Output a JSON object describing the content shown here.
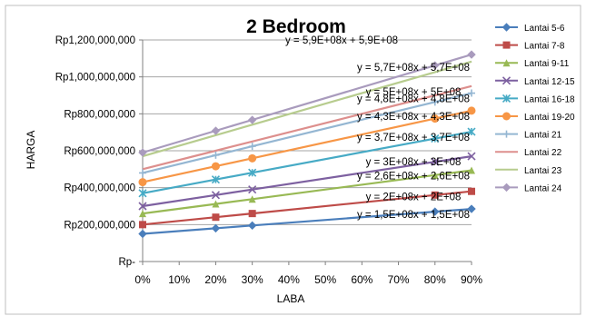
{
  "chart_data": {
    "type": "line",
    "title": "2 Bedroom",
    "xlabel": "LABA",
    "ylabel": "HARGA",
    "x": [
      0,
      20,
      30,
      80,
      90
    ],
    "x_ticks": [
      "0%",
      "10%",
      "20%",
      "30%",
      "40%",
      "50%",
      "60%",
      "70%",
      "80%",
      "90%"
    ],
    "x_tick_values": [
      0,
      10,
      20,
      30,
      40,
      50,
      60,
      70,
      80,
      90
    ],
    "xlim": [
      0,
      90
    ],
    "y_ticks": [
      "Rp-",
      "Rp200,000,000",
      "Rp400,000,000",
      "Rp600,000,000",
      "Rp800,000,000",
      "Rp1,000,000,000",
      "Rp1,200,000,000"
    ],
    "y_tick_values": [
      0,
      200000000,
      400000000,
      600000000,
      800000000,
      1000000000,
      1200000000
    ],
    "ylim": [
      0,
      1200000000
    ],
    "grid": "horizontal",
    "legend_position": "right",
    "series": [
      {
        "name": "Lantai 5-6",
        "color": "#4a7ebb",
        "marker": "diamond",
        "values": [
          150000000,
          180000000,
          195000000,
          270000000,
          285000000
        ],
        "trendline": "y = 1,5E+08x + 1,5E+08",
        "trend": [
          150000000,
          285000000
        ]
      },
      {
        "name": "Lantai 7-8",
        "color": "#be4b48",
        "marker": "square",
        "values": [
          200000000,
          240000000,
          260000000,
          360000000,
          380000000
        ],
        "trendline": "y = 2E+08x + 2E+08",
        "trend": [
          200000000,
          380000000
        ]
      },
      {
        "name": "Lantai 9-11",
        "color": "#98b954",
        "marker": "triangle",
        "values": [
          260000000,
          312000000,
          338000000,
          468000000,
          494000000
        ],
        "trendline": "y = 2,6E+08x + 2,6E+08",
        "trend": [
          260000000,
          494000000
        ]
      },
      {
        "name": "Lantai 12-15",
        "color": "#7d60a0",
        "marker": "x",
        "values": [
          300000000,
          360000000,
          390000000,
          540000000,
          570000000
        ],
        "trendline": "y = 3E+08x + 3E+08",
        "trend": [
          300000000,
          570000000
        ]
      },
      {
        "name": "Lantai 16-18",
        "color": "#46aac5",
        "marker": "star",
        "values": [
          370000000,
          444000000,
          481000000,
          666000000,
          703000000
        ],
        "trendline": "y = 3,7E+08x + 3,7E+08",
        "trend": [
          370000000,
          703000000
        ]
      },
      {
        "name": "Lantai 19-20",
        "color": "#f79646",
        "marker": "circle",
        "values": [
          430000000,
          516000000,
          559000000,
          774000000,
          817000000
        ],
        "trendline": "y = 4,3E+08x + 4,3E+08",
        "trend": [
          430000000,
          817000000
        ]
      },
      {
        "name": "Lantai 21",
        "color": "#94b6d2",
        "marker": "plus",
        "values": [
          480000000,
          576000000,
          624000000,
          864000000,
          912000000
        ],
        "trendline": "y = 4,8E+08x + 4,8E+08",
        "trend": [
          480000000,
          912000000
        ]
      },
      {
        "name": "Lantai 22",
        "color": "#dd8f8d",
        "marker": "none",
        "values": [
          500000000,
          600000000,
          650000000,
          900000000,
          950000000
        ],
        "trendline": "y = 5E+08x + 5E+08",
        "trend": [
          500000000,
          950000000
        ]
      },
      {
        "name": "Lantai 23",
        "color": "#b7cc8e",
        "marker": "none",
        "values": [
          570000000,
          684000000,
          741000000,
          1026000000,
          1083000000
        ],
        "trendline": "y = 5,7E+08x + 5,7E+08",
        "trend": [
          570000000,
          1083000000
        ]
      },
      {
        "name": "Lantai 24",
        "color": "#a99bbd",
        "marker": "diamond",
        "values": [
          590000000,
          708000000,
          767000000,
          1062000000,
          1121000000
        ],
        "trendline": "y = 5,9E+08x + 5,9E+08",
        "trend": [
          590000000,
          1121000000
        ]
      }
    ]
  }
}
